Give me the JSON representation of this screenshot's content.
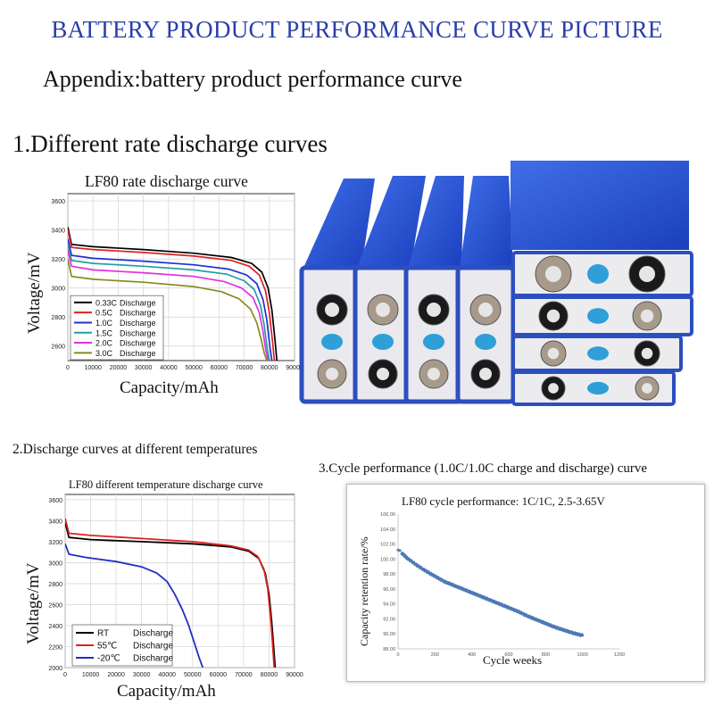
{
  "page": {
    "title": "BATTERY PRODUCT PERFORMANCE CURVE PICTURE",
    "appendix": "Appendix:battery product performance curve",
    "section1": "1.Different rate discharge curves",
    "section2": "2.Discharge curves at different temperatures",
    "section3": "3.Cycle performance (1.0C/1.0C charge and discharge) curve",
    "accent_color": "#2a3fa8"
  },
  "chart_data": [
    {
      "type": "line",
      "title": "LF80 rate discharge curve",
      "xlabel": "Capacity/mAh",
      "ylabel": "Voltage/mV",
      "xlim": [
        0,
        90000
      ],
      "ylim": [
        2500,
        3650
      ],
      "xticks": [
        "0",
        "10000",
        "20000",
        "30000",
        "40000",
        "50000",
        "60000",
        "70000",
        "80000",
        "90000"
      ],
      "yticks": [
        "2600",
        "2800",
        "3000",
        "3200",
        "3400",
        "3600"
      ],
      "grid": true,
      "legend": "bottom-left",
      "series": [
        {
          "name": "0.33C",
          "label": "Discharge",
          "color": "#000000",
          "x": [
            0,
            1500,
            10000,
            30000,
            50000,
            65000,
            73000,
            77000,
            79500,
            81000,
            82200,
            83000
          ],
          "y": [
            3420,
            3300,
            3285,
            3265,
            3240,
            3210,
            3170,
            3110,
            3000,
            2850,
            2650,
            2500
          ]
        },
        {
          "name": "0.5C",
          "label": "Discharge",
          "color": "#e02020",
          "x": [
            0,
            1500,
            10000,
            30000,
            50000,
            65000,
            72000,
            76000,
            78500,
            80000,
            81200,
            82000
          ],
          "y": [
            3400,
            3280,
            3265,
            3245,
            3220,
            3190,
            3150,
            3090,
            2980,
            2830,
            2640,
            2500
          ]
        },
        {
          "name": "1.0C",
          "label": "Discharge",
          "color": "#2030d0",
          "x": [
            0,
            1500,
            10000,
            30000,
            50000,
            64000,
            71000,
            75000,
            77500,
            79000,
            80200,
            81000
          ],
          "y": [
            3340,
            3225,
            3205,
            3185,
            3160,
            3130,
            3090,
            3030,
            2920,
            2780,
            2600,
            2500
          ]
        },
        {
          "name": "1.5C",
          "label": "Discharge",
          "color": "#20a0a0",
          "x": [
            0,
            1500,
            10000,
            30000,
            50000,
            63000,
            70000,
            74000,
            76500,
            78000,
            79200,
            80000
          ],
          "y": [
            3300,
            3190,
            3170,
            3150,
            3125,
            3095,
            3050,
            2990,
            2880,
            2740,
            2580,
            2500
          ]
        },
        {
          "name": "2.0C",
          "label": "Discharge",
          "color": "#e030e0",
          "x": [
            0,
            1500,
            10000,
            30000,
            50000,
            62000,
            69000,
            73500,
            76000,
            77500,
            78700,
            79500
          ],
          "y": [
            3260,
            3150,
            3125,
            3105,
            3080,
            3045,
            3000,
            2935,
            2830,
            2700,
            2560,
            2500
          ]
        },
        {
          "name": "3.0C",
          "label": "Discharge",
          "color": "#8a8a20",
          "x": [
            0,
            1500,
            10000,
            30000,
            50000,
            61000,
            68000,
            72500,
            75000,
            76700,
            78000,
            79000
          ],
          "y": [
            3200,
            3080,
            3060,
            3040,
            3010,
            2975,
            2925,
            2855,
            2760,
            2650,
            2550,
            2500
          ]
        }
      ]
    },
    {
      "type": "line",
      "title": "LF80 different temperature discharge curve",
      "xlabel": "Capacity/mAh",
      "ylabel": "Voltage/mV",
      "xlim": [
        0,
        90000
      ],
      "ylim": [
        2000,
        3650
      ],
      "xticks": [
        "0",
        "10000",
        "20000",
        "30000",
        "40000",
        "50000",
        "60000",
        "70000",
        "80000",
        "90000"
      ],
      "yticks": [
        "2000",
        "2200",
        "2400",
        "2600",
        "2800",
        "3000",
        "3200",
        "3400",
        "3600"
      ],
      "grid": true,
      "legend": "bottom-left",
      "series": [
        {
          "name": "RT",
          "label": "Discharge",
          "color": "#000000",
          "x": [
            0,
            1500,
            10000,
            30000,
            50000,
            65000,
            72000,
            76000,
            78500,
            80000,
            81000,
            81800,
            82400
          ],
          "y": [
            3380,
            3240,
            3220,
            3200,
            3180,
            3150,
            3110,
            3040,
            2900,
            2700,
            2450,
            2200,
            2000
          ]
        },
        {
          "name": "55℃",
          "label": "Discharge",
          "color": "#e02020",
          "x": [
            0,
            1500,
            10000,
            30000,
            50000,
            65000,
            72000,
            75500,
            78000,
            79500,
            80500,
            81300,
            82000
          ],
          "y": [
            3420,
            3280,
            3260,
            3230,
            3200,
            3160,
            3120,
            3060,
            2940,
            2750,
            2500,
            2250,
            2000
          ]
        },
        {
          "name": "-20℃",
          "label": "Discharge",
          "color": "#2030c0",
          "x": [
            0,
            1500,
            8000,
            20000,
            30000,
            36000,
            40000,
            43000,
            46000,
            48500,
            50500,
            52500,
            54000
          ],
          "y": [
            3180,
            3080,
            3050,
            3010,
            2960,
            2900,
            2820,
            2700,
            2550,
            2400,
            2250,
            2100,
            2000
          ]
        }
      ]
    },
    {
      "type": "scatter",
      "title": "LF80 cycle performance: 1C/1C, 2.5-3.65V",
      "xlabel": "Cycle weeks",
      "ylabel": "Capacity retention rate/%",
      "xlim": [
        0,
        1200
      ],
      "ylim": [
        88,
        106
      ],
      "xticks": [
        "0",
        "200",
        "400",
        "600",
        "800",
        "1000",
        "1200"
      ],
      "yticks": [
        "88.00",
        "90.00",
        "92.00",
        "94.00",
        "96.00",
        "98.00",
        "100.00",
        "102.00",
        "104.00",
        "106.00"
      ],
      "grid": false,
      "color": "#4d79b5",
      "x": [
        0,
        20,
        50,
        100,
        150,
        200,
        250,
        300,
        350,
        400,
        450,
        500,
        550,
        600,
        650,
        700,
        750,
        800,
        850,
        900,
        950,
        1000
      ],
      "y": [
        101.2,
        100.8,
        100.1,
        99.2,
        98.4,
        97.7,
        97.0,
        96.5,
        96.0,
        95.5,
        95.0,
        94.5,
        94.0,
        93.5,
        93.0,
        92.4,
        91.9,
        91.4,
        90.9,
        90.5,
        90.1,
        89.8
      ]
    }
  ]
}
